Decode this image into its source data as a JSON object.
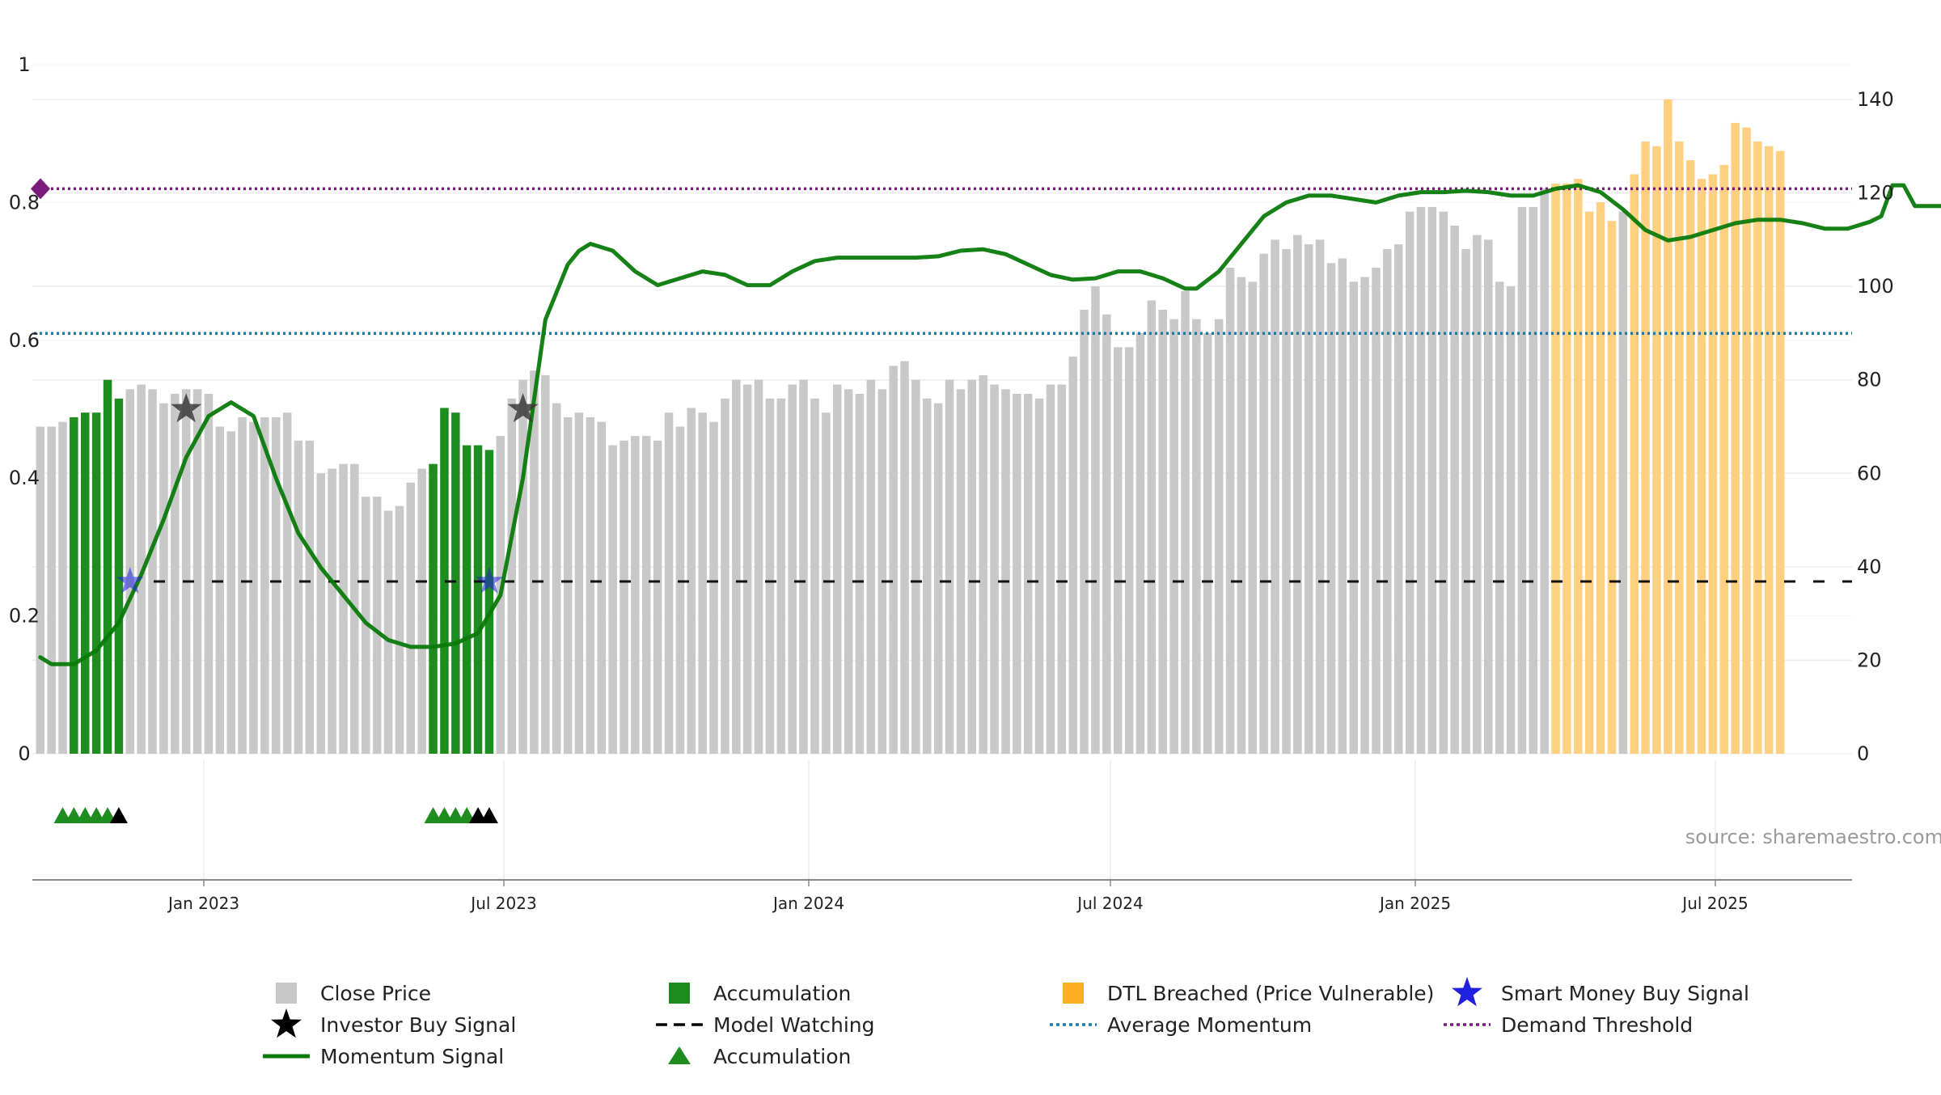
{
  "chart_data": {
    "type": "bar",
    "title": "",
    "source": "source: sharemaestro.com",
    "x_tick_labels": [
      "Jan 2023",
      "Jul 2023",
      "Jan 2024",
      "Jul 2024",
      "Jan 2025",
      "Jul 2025"
    ],
    "left_axis": {
      "range": [
        0,
        1
      ],
      "ticks": [
        "0",
        "0.2",
        "0.4",
        "0.6",
        "0.8",
        "1"
      ]
    },
    "right_axis": {
      "range": [
        0,
        140
      ],
      "ticks": [
        "0",
        "20",
        "40",
        "60",
        "80",
        "100",
        "120",
        "140"
      ]
    },
    "close_price": [
      70,
      70,
      71,
      72,
      73,
      73,
      80,
      76,
      78,
      79,
      78,
      75,
      77,
      78,
      78,
      77,
      70,
      69,
      72,
      71,
      72,
      72,
      73,
      67,
      67,
      60,
      61,
      62,
      62,
      55,
      55,
      52,
      53,
      58,
      61,
      62,
      74,
      73,
      66,
      66,
      65,
      68,
      76,
      80,
      82,
      81,
      75,
      72,
      73,
      72,
      71,
      66,
      67,
      68,
      68,
      67,
      73,
      70,
      74,
      73,
      71,
      76,
      80,
      79,
      80,
      76,
      76,
      79,
      80,
      76,
      73,
      79,
      78,
      77,
      80,
      78,
      83,
      84,
      80,
      76,
      75,
      80,
      78,
      80,
      81,
      79,
      78,
      77,
      77,
      76,
      79,
      79,
      85,
      95,
      100,
      94,
      87,
      87,
      90,
      97,
      95,
      93,
      99,
      93,
      90,
      93,
      104,
      102,
      101,
      107,
      110,
      108,
      111,
      109,
      110,
      105,
      106,
      101,
      102,
      104,
      108,
      109,
      116,
      117,
      117,
      116,
      113,
      108,
      111,
      110,
      101,
      100,
      117,
      117,
      121,
      122,
      122,
      123,
      116,
      118,
      114,
      116,
      124,
      131,
      130,
      140,
      131,
      127,
      123,
      124,
      126,
      135,
      134,
      131,
      130,
      129
    ],
    "accumulation_bar_ranges": [
      [
        3,
        7
      ],
      [
        35,
        40
      ]
    ],
    "dtl_breached_ranges": [
      [
        135,
        140
      ],
      [
        142,
        155
      ]
    ],
    "momentum_signal_points": [
      [
        0,
        0.14
      ],
      [
        1,
        0.13
      ],
      [
        3,
        0.13
      ],
      [
        5,
        0.15
      ],
      [
        7,
        0.19
      ],
      [
        9,
        0.26
      ],
      [
        11,
        0.34
      ],
      [
        13,
        0.43
      ],
      [
        15,
        0.49
      ],
      [
        17,
        0.51
      ],
      [
        19,
        0.49
      ],
      [
        21,
        0.4
      ],
      [
        23,
        0.32
      ],
      [
        25,
        0.27
      ],
      [
        27,
        0.23
      ],
      [
        29,
        0.19
      ],
      [
        31,
        0.165
      ],
      [
        33,
        0.155
      ],
      [
        35,
        0.155
      ],
      [
        37,
        0.16
      ],
      [
        39,
        0.175
      ],
      [
        41,
        0.23
      ],
      [
        43,
        0.4
      ],
      [
        45,
        0.63
      ],
      [
        47,
        0.71
      ],
      [
        48,
        0.73
      ],
      [
        49,
        0.74
      ],
      [
        51,
        0.73
      ],
      [
        53,
        0.7
      ],
      [
        55,
        0.68
      ],
      [
        57,
        0.69
      ],
      [
        59,
        0.7
      ],
      [
        61,
        0.695
      ],
      [
        63,
        0.68
      ],
      [
        65,
        0.68
      ],
      [
        67,
        0.7
      ],
      [
        69,
        0.715
      ],
      [
        71,
        0.72
      ],
      [
        75,
        0.72
      ],
      [
        78,
        0.72
      ],
      [
        80,
        0.722
      ],
      [
        82,
        0.73
      ],
      [
        84,
        0.732
      ],
      [
        86,
        0.725
      ],
      [
        88,
        0.71
      ],
      [
        90,
        0.695
      ],
      [
        92,
        0.688
      ],
      [
        94,
        0.69
      ],
      [
        96,
        0.7
      ],
      [
        98,
        0.7
      ],
      [
        100,
        0.69
      ],
      [
        102,
        0.675
      ],
      [
        103,
        0.675
      ],
      [
        105,
        0.7
      ],
      [
        107,
        0.74
      ],
      [
        109,
        0.78
      ],
      [
        111,
        0.8
      ],
      [
        113,
        0.81
      ],
      [
        115,
        0.81
      ],
      [
        117,
        0.805
      ],
      [
        119,
        0.8
      ],
      [
        121,
        0.81
      ],
      [
        123,
        0.815
      ],
      [
        125,
        0.815
      ],
      [
        127,
        0.817
      ],
      [
        129,
        0.815
      ],
      [
        131,
        0.81
      ],
      [
        133,
        0.81
      ],
      [
        135,
        0.82
      ],
      [
        137,
        0.825
      ],
      [
        139,
        0.815
      ],
      [
        141,
        0.79
      ],
      [
        143,
        0.76
      ],
      [
        145,
        0.745
      ],
      [
        147,
        0.75
      ],
      [
        149,
        0.76
      ],
      [
        151,
        0.77
      ],
      [
        153,
        0.775
      ],
      [
        155,
        0.775
      ],
      [
        157,
        0.77
      ],
      [
        159,
        0.762
      ],
      [
        161,
        0.762
      ],
      [
        163,
        0.772
      ],
      [
        164,
        0.78
      ],
      [
        165,
        0.825
      ],
      [
        166,
        0.825
      ],
      [
        167,
        0.795
      ],
      [
        170,
        0.795
      ]
    ],
    "average_momentum": 0.61,
    "demand_threshold": 0.82,
    "model_watching_level": 0.25,
    "investor_buy_signals": [
      [
        13,
        0.5
      ],
      [
        43,
        0.5
      ]
    ],
    "smart_money_buy_signals": [
      [
        8,
        0.25
      ],
      [
        40,
        0.25
      ]
    ],
    "accumulation_markers": [
      {
        "start": 2,
        "end": 6,
        "sold_out": [
          7
        ]
      },
      {
        "start": 35,
        "end": 38,
        "sold_out": [
          39,
          40
        ]
      }
    ],
    "colors": {
      "close_price": "#c8c8c8",
      "accumulation": "#1e8c1e",
      "dtl_breached": "#ffd07f",
      "momentum": "#0a7a0a",
      "average_momentum": "#1f77a8",
      "demand_threshold": "#7a1a7a",
      "model_watching": "#111111",
      "investor_buy": "#3a3a3a",
      "smart_money_buy": "#2020e0",
      "grid": "#ececec",
      "axis": "#888888"
    },
    "legend": [
      {
        "label": "Close Price",
        "marker": "square-gray"
      },
      {
        "label": "Accumulation",
        "marker": "square-green"
      },
      {
        "label": "DTL Breached (Price Vulnerable)",
        "marker": "square-orange"
      },
      {
        "label": "Smart Money Buy Signal",
        "marker": "star-blue"
      },
      {
        "label": "Investor Buy Signal",
        "marker": "star-black"
      },
      {
        "label": "Model Watching",
        "marker": "dash-black"
      },
      {
        "label": "Average Momentum",
        "marker": "dot-blue"
      },
      {
        "label": "Demand Threshold",
        "marker": "dot-purple"
      },
      {
        "label": "Momentum Signal",
        "marker": "line-green"
      },
      {
        "label": "Accumulation",
        "marker": "triangle-green"
      }
    ]
  }
}
